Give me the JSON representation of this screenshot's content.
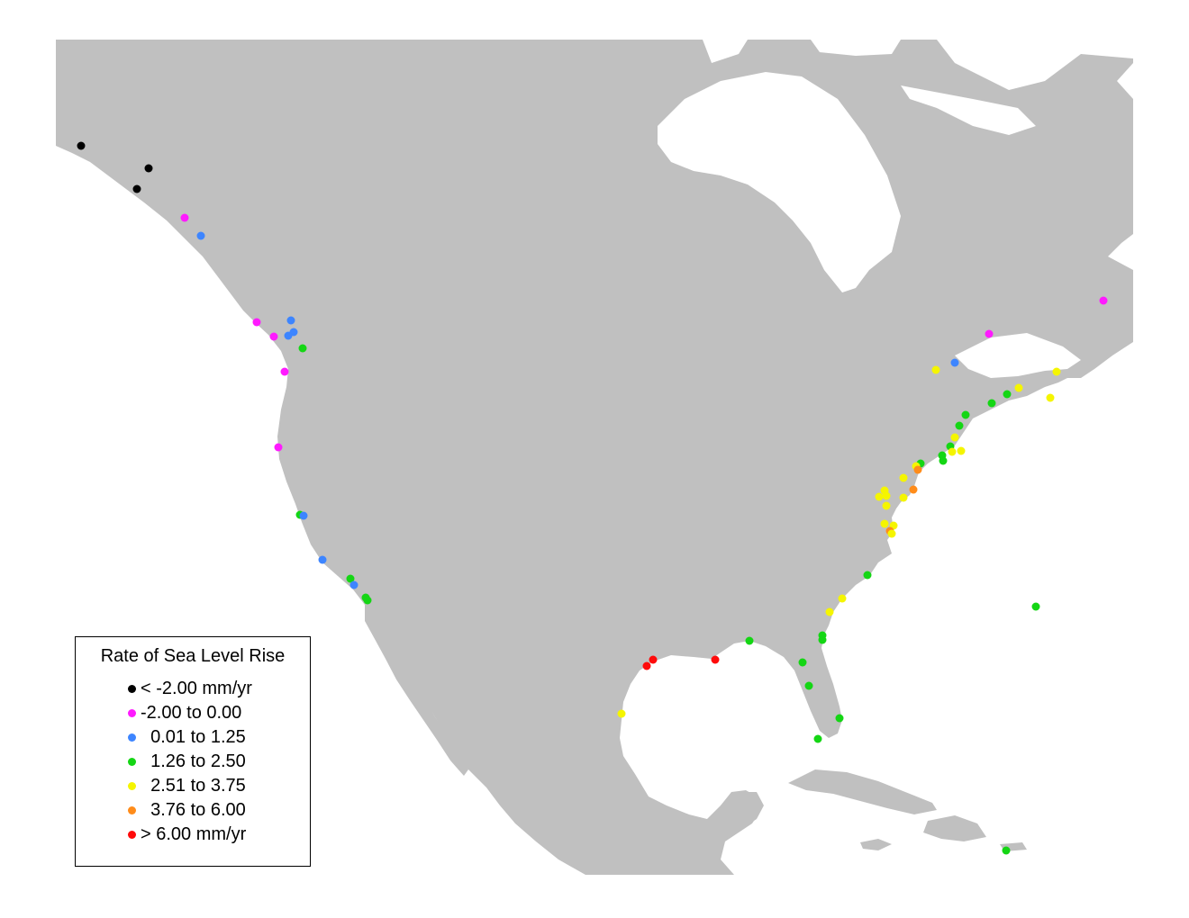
{
  "legend": {
    "title": "Rate of Sea Level Rise",
    "items": [
      {
        "key": "black",
        "label": "< -2.00 mm/yr",
        "color": "#000000"
      },
      {
        "key": "magenta",
        "label": "-2.00 to 0.00",
        "color": "#ff1aff"
      },
      {
        "key": "blue",
        "label": "  0.01 to 1.25",
        "color": "#3d85ff"
      },
      {
        "key": "green",
        "label": "  1.26 to 2.50",
        "color": "#14d614"
      },
      {
        "key": "yellow",
        "label": "  2.51 to 3.75",
        "color": "#f5f500"
      },
      {
        "key": "orange",
        "label": "  3.76 to 6.00",
        "color": "#ff8c1a"
      },
      {
        "key": "red",
        "label": "> 6.00 mm/yr",
        "color": "#ff0a0a"
      }
    ]
  },
  "colors": {
    "land": "#c0c0c0",
    "water": "#ffffff"
  }
}
